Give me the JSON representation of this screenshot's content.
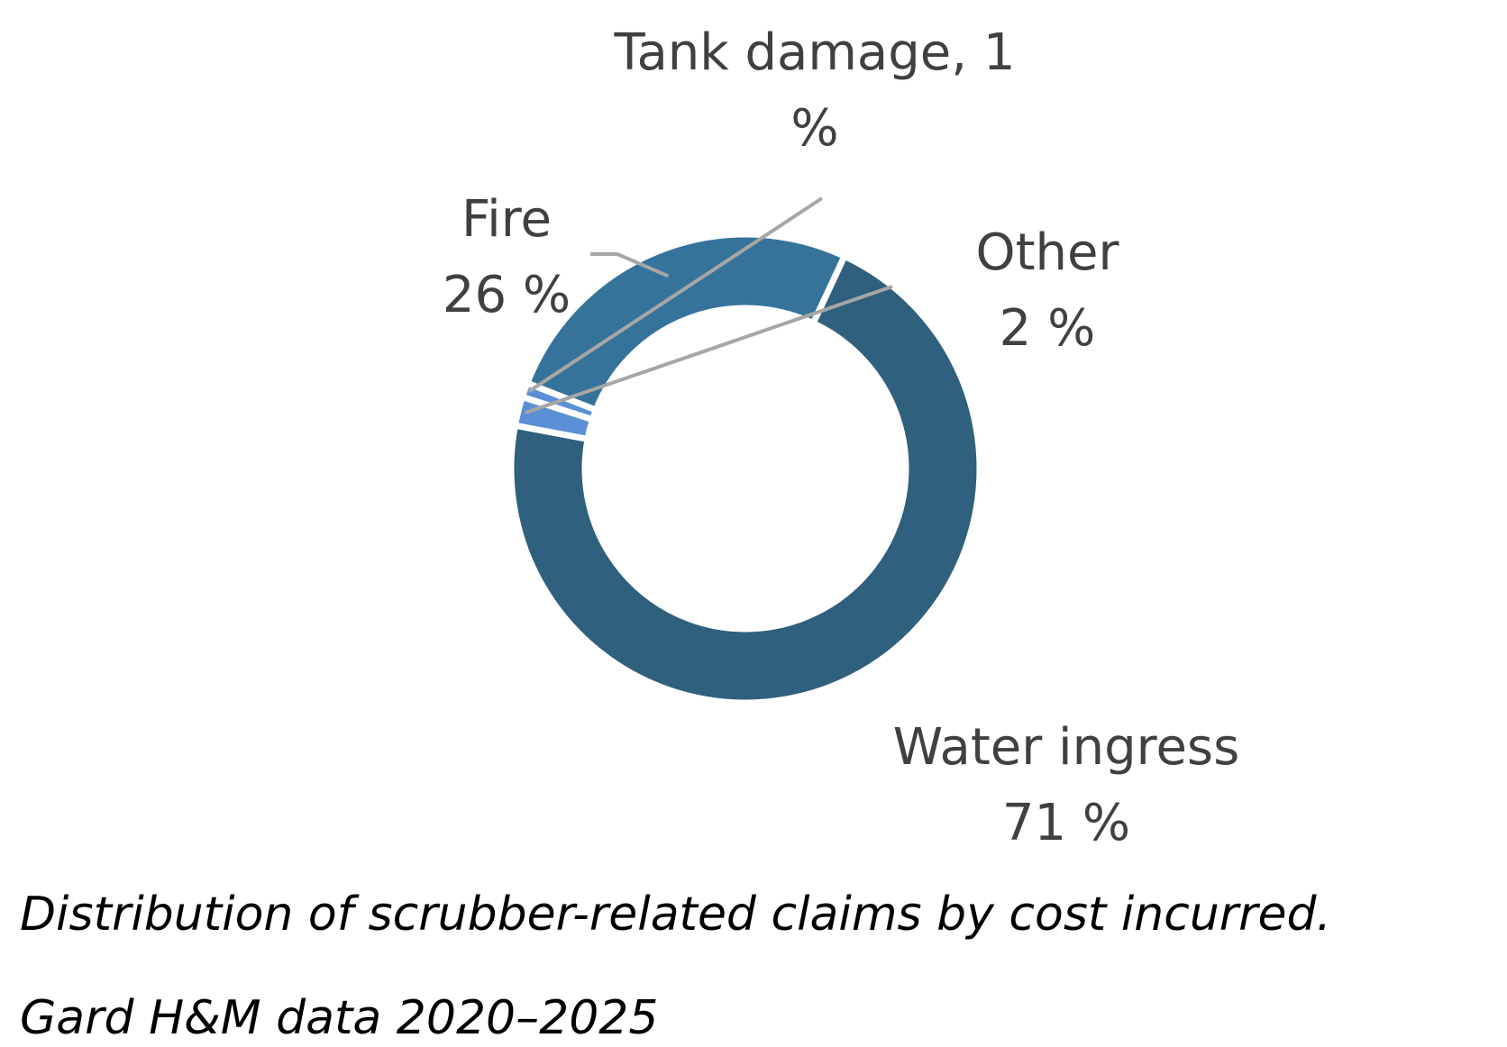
{
  "chart_data": {
    "type": "pie",
    "style": "donut",
    "categories": [
      "Water ingress",
      "Other",
      "Tank damage",
      "Fire"
    ],
    "values": [
      71,
      2,
      1,
      26
    ],
    "labels": [
      {
        "name": "Water ingress",
        "value_text": "71 %"
      },
      {
        "name": "Other",
        "value_text": "2 %"
      },
      {
        "name": "Tank damage, 1",
        "value_text": "%"
      },
      {
        "name": "Fire",
        "value_text": "26 %"
      }
    ],
    "colors": [
      "#2f607e",
      "#5b8fd6",
      "#5b8fd6",
      "#36739b"
    ],
    "legend": "none",
    "grid": false
  },
  "caption": {
    "line1": "Distribution of scrubber-related claims by cost incurred.",
    "line2": "Gard H&M data 2020–2025"
  }
}
